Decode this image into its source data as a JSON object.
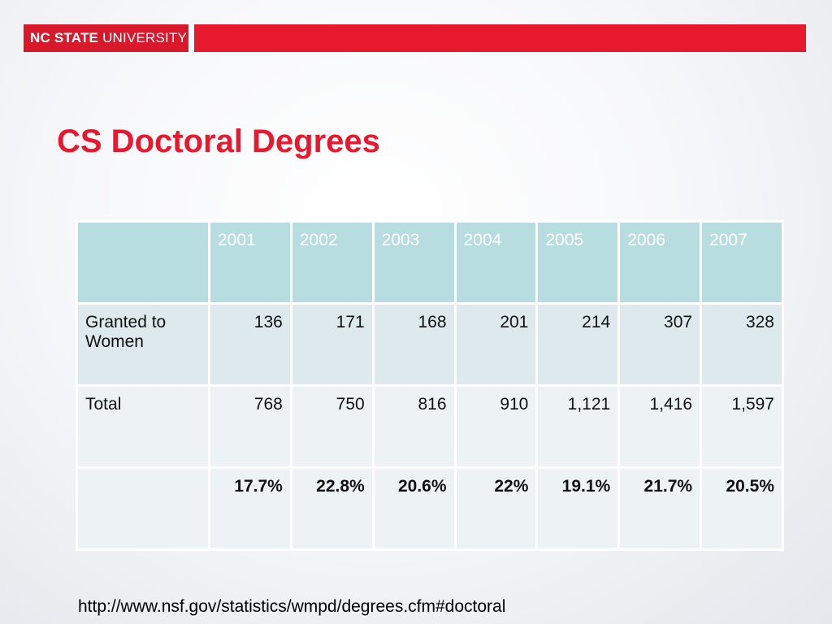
{
  "header": {
    "logo_strong": "NC STATE",
    "logo_light": "UNIVERSITY",
    "brand_color": "#e8192f"
  },
  "title": "CS Doctoral Degrees",
  "table": {
    "header_bg": "#b7dde0",
    "corner": "",
    "years": [
      "2001",
      "2002",
      "2003",
      "2004",
      "2005",
      "2006",
      "2007"
    ],
    "rows": [
      {
        "label": "Granted to Women",
        "values": [
          "136",
          "171",
          "168",
          "201",
          "214",
          "307",
          "328"
        ]
      },
      {
        "label": "Total",
        "values": [
          "768",
          "750",
          "816",
          "910",
          "1,121",
          "1,416",
          "1,597"
        ]
      },
      {
        "label": "",
        "values": [
          "17.7%",
          "22.8%",
          "20.6%",
          "22%",
          "19.1%",
          "21.7%",
          "20.5%"
        ]
      }
    ]
  },
  "source": "http://www.nsf.gov/statistics/wmpd/degrees.cfm#doctoral"
}
